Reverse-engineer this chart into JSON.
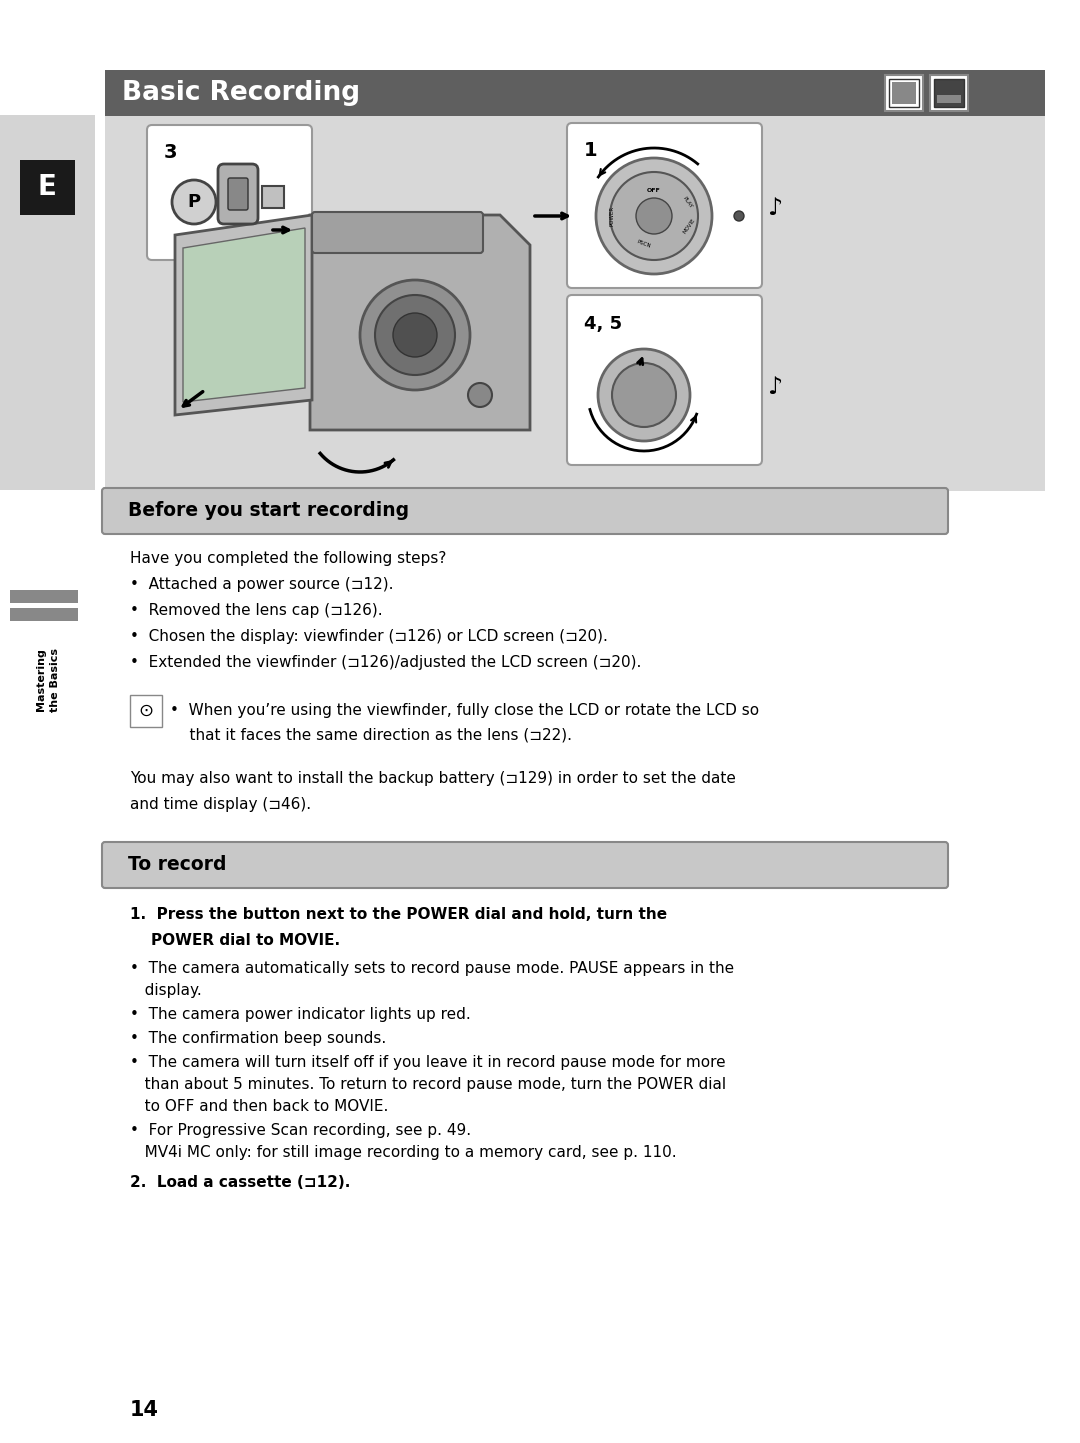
{
  "title": "Basic Recording",
  "title_bg_color": "#5f5f5f",
  "title_text_color": "#ffffff",
  "page_bg": "#ffffff",
  "left_tab_bg": "#d4d4d4",
  "left_tab_letter": "E",
  "left_tab_letter_bg": "#1a1a1a",
  "image_area_bg": "#d8d8d8",
  "section_title_bg": "#c8c8c8",
  "section_title_border": "#888888",
  "section1_title": "Before you start recording",
  "section2_title": "To record",
  "sidebar_bars_color": "#888888",
  "page_number": "14",
  "body_text_color": "#000000",
  "body_font_size": 11.0,
  "before_recording_intro": "Have you completed the following steps?",
  "before_recording_bullets": [
    "•  Attached a power source (⊐12).",
    "•  Removed the lens cap (⊐126).",
    "•  Chosen the display: viewfinder (⊐126) or LCD screen (⊐20).",
    "•  Extended the viewfinder (⊐126)/adjusted the LCD screen (⊐20)."
  ],
  "note_text_line1": "•  When you’re using the viewfinder, fully close the LCD or rotate the LCD so",
  "note_text_line2": "    that it faces the same direction as the lens (⊐22).",
  "backup_text_line1": "You may also want to install the backup battery (⊐129) in order to set the date",
  "backup_text_line2": "and time display (⊐46).",
  "step1_line1": "1.  Press the button next to the POWER dial and hold, turn the",
  "step1_line2": "    POWER dial to MOVIE.",
  "step1_bullets": [
    [
      "•  The camera automatically sets to record pause mode. PAUSE appears in the",
      "   display."
    ],
    [
      "•  The camera power indicator lights up red."
    ],
    [
      "•  The confirmation beep sounds."
    ],
    [
      "•  The camera will turn itself off if you leave it in record pause mode for more",
      "   than about 5 minutes. To return to record pause mode, turn the POWER dial",
      "   to OFF and then back to MOVIE."
    ],
    [
      "•  For Progressive Scan recording, see p. 49.",
      "   MV4i MC only: for still image recording to a memory card, see p. 110."
    ]
  ],
  "step2": "2.  Load a cassette (⊐12)."
}
